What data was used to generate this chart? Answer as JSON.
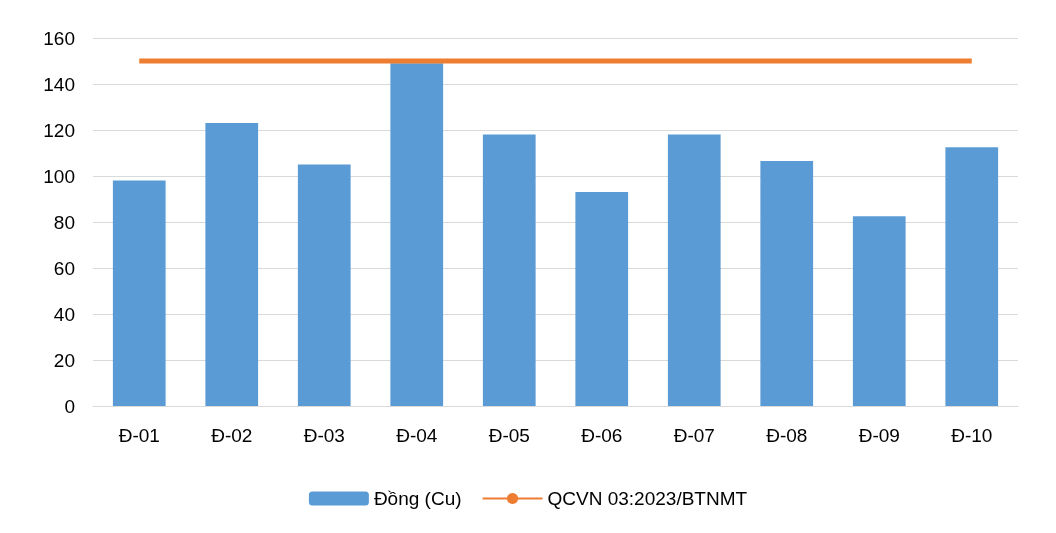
{
  "chart_data": {
    "type": "bar",
    "categories": [
      "Đ-01",
      "Đ-02",
      "Đ-03",
      "Đ-04",
      "Đ-05",
      "Đ-06",
      "Đ-07",
      "Đ-08",
      "Đ-09",
      "Đ-10"
    ],
    "series": [
      {
        "name": "Đồng (Cu)",
        "color": "#5b9bd5",
        "values": [
          98,
          123,
          105,
          149,
          118,
          93,
          118,
          106.5,
          82.5,
          112.5
        ]
      },
      {
        "name": "QCVN 03:2023/BTNMT",
        "type": "line",
        "color": "#ed7d31",
        "values": [
          150,
          150,
          150,
          150,
          150,
          150,
          150,
          150,
          150,
          150
        ]
      }
    ],
    "ylim": [
      0,
      160
    ],
    "yticks": [
      0,
      20,
      40,
      60,
      80,
      100,
      120,
      140,
      160
    ],
    "grid": "y",
    "legend": "bottom",
    "marker": "none"
  }
}
